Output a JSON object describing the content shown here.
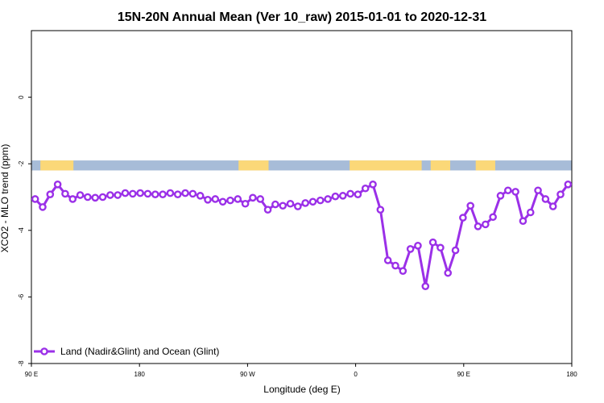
{
  "chart_data": {
    "type": "line",
    "title": "15N-20N Annual Mean (Ver 10_raw)   2015-01-01 to 2020-12-31",
    "xlabel": "Longitude (deg E)",
    "ylabel": "XCO2 - MLO trend (ppm)",
    "xlim": [
      90,
      450
    ],
    "ylim": [
      -8,
      2
    ],
    "x_ticks": [
      {
        "value": 90,
        "label": "90 E"
      },
      {
        "value": 162,
        "label": "180"
      },
      {
        "value": 234,
        "label": "90 W"
      },
      {
        "value": 306,
        "label": "0"
      },
      {
        "value": 378,
        "label": "90 E"
      },
      {
        "value": 450,
        "label": "180"
      }
    ],
    "y_ticks": [
      {
        "value": 0,
        "label": "0"
      },
      {
        "value": -2,
        "label": "-2"
      },
      {
        "value": -4,
        "label": "-4"
      },
      {
        "value": -6,
        "label": "-6"
      },
      {
        "value": -8,
        "label": "-8"
      }
    ],
    "band": {
      "y_top": -1.9,
      "y_bottom": -2.2,
      "ocean_color": "#a7bcd8",
      "land_color": "#fbd878"
    },
    "land_segments": [
      [
        96,
        118
      ],
      [
        228,
        248
      ],
      [
        302,
        350
      ],
      [
        356,
        369
      ],
      [
        386,
        399
      ]
    ],
    "series": [
      {
        "name": "Land (Nadir&Glint) and Ocean (Glint)",
        "color": "#9b30e8",
        "x": [
          92.5,
          97.5,
          102.5,
          107.5,
          112.5,
          117.5,
          122.5,
          127.5,
          132.5,
          137.5,
          142.5,
          147.5,
          152.5,
          157.5,
          162.5,
          167.5,
          172.5,
          177.5,
          182.5,
          187.5,
          192.5,
          197.5,
          202.5,
          207.5,
          212.5,
          217.5,
          222.5,
          227.5,
          232.5,
          237.5,
          242.5,
          247.5,
          252.5,
          257.5,
          262.5,
          267.5,
          272.5,
          277.5,
          282.5,
          287.5,
          292.5,
          297.5,
          302.5,
          307.5,
          312.5,
          317.5,
          322.5,
          327.5,
          332.5,
          337.5,
          342.5,
          347.5,
          352.5,
          357.5,
          362.5,
          367.5,
          372.5,
          377.5,
          382.5,
          387.5,
          392.5,
          397.5,
          402.5,
          407.5,
          412.5,
          417.5,
          422.5,
          427.5,
          432.5,
          437.5,
          442.5,
          447.5
        ],
        "y": [
          -3.06,
          -3.3,
          -2.92,
          -2.62,
          -2.9,
          -3.06,
          -2.94,
          -3.0,
          -3.02,
          -3.0,
          -2.94,
          -2.94,
          -2.88,
          -2.9,
          -2.88,
          -2.9,
          -2.92,
          -2.92,
          -2.88,
          -2.92,
          -2.88,
          -2.9,
          -2.96,
          -3.08,
          -3.06,
          -3.14,
          -3.1,
          -3.06,
          -3.2,
          -3.02,
          -3.06,
          -3.38,
          -3.22,
          -3.26,
          -3.2,
          -3.28,
          -3.18,
          -3.14,
          -3.1,
          -3.06,
          -2.98,
          -2.96,
          -2.9,
          -2.92,
          -2.74,
          -2.62,
          -3.38,
          -4.9,
          -5.06,
          -5.22,
          -4.56,
          -4.46,
          -5.68,
          -4.36,
          -4.52,
          -5.28,
          -4.6,
          -3.62,
          -3.26,
          -3.88,
          -3.82,
          -3.6,
          -2.96,
          -2.8,
          -2.84,
          -3.72,
          -3.46,
          -2.8,
          -3.06,
          -3.28,
          -2.92,
          -2.62
        ]
      }
    ],
    "legend": {
      "position": "bottom-left"
    }
  }
}
